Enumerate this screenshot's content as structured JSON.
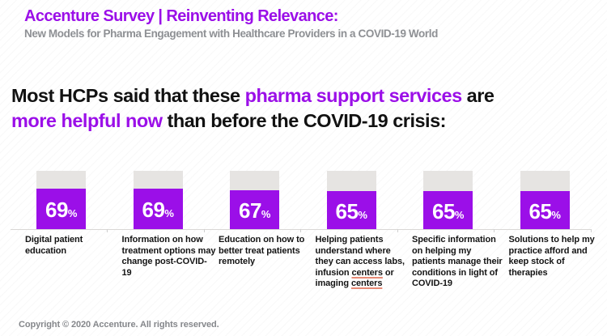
{
  "header": {
    "title": "Accenture Survey | Reinventing Relevance:",
    "subtitle": "New Models for Pharma Engagement with Healthcare Providers in a COVID-19 World"
  },
  "heading": {
    "full_text": "Most HCPs said that these pharma support services are more helpful now than before the COVID-19 crisis:",
    "parts": [
      {
        "t": "Most HCPs said that these ",
        "c": "dark"
      },
      {
        "t": "pharma support services",
        "c": "purple"
      },
      {
        "t": " are",
        "c": "dark",
        "br": true
      },
      {
        "t": "more helpful now",
        "c": "purple"
      },
      {
        "t": " than before the COVID-19 crisis:",
        "c": "dark"
      }
    ]
  },
  "chart_data": {
    "type": "bar",
    "title": "Pharma support services rated more helpful now than before the COVID-19 crisis",
    "unit": "%",
    "ylim": [
      0,
      100
    ],
    "grid": false,
    "legend": false,
    "categories": [
      "Digital patient education",
      "Information on how treatment options may change post-COVID-19",
      "Education on how to better treat patients remotely",
      "Helping patients understand where they can access labs, infusion centers or imaging centers",
      "Specific information on helping my patients manage their conditions in light of COVID-19",
      "Solutions to help my practice afford and keep stock of therapies"
    ],
    "values": [
      69,
      69,
      67,
      65,
      65,
      65
    ],
    "category_parts": [
      [
        {
          "t": "Digital patient education"
        }
      ],
      [
        {
          "t": "Information on how treatment options may change post-COVID-19"
        }
      ],
      [
        {
          "t": "Education on how to better treat patients remotely"
        }
      ],
      [
        {
          "t": "Helping patients understand where they can access labs, infusion "
        },
        {
          "t": "centers",
          "u": true
        },
        {
          "t": " or imaging "
        },
        {
          "t": "centers",
          "u": true
        }
      ],
      [
        {
          "t": "Specific information on helping my patients manage their conditions in light of COVID-19"
        }
      ],
      [
        {
          "t": "Solutions to help my practice afford and keep stock of therapies"
        }
      ]
    ]
  },
  "footer": {
    "copyright": "Copyright © 2020 Accenture. All rights reserved."
  },
  "colors": {
    "purple": "#9B0FE8",
    "purple_bar": "#9B0FE8",
    "track_gray": "#E6E4E2",
    "baseline_gray": "#D9D7D5",
    "ink": "#111111",
    "subtitle_gray": "#8E9094",
    "footer_gray": "#85878B",
    "spellcheck_red": "#E78A76"
  }
}
